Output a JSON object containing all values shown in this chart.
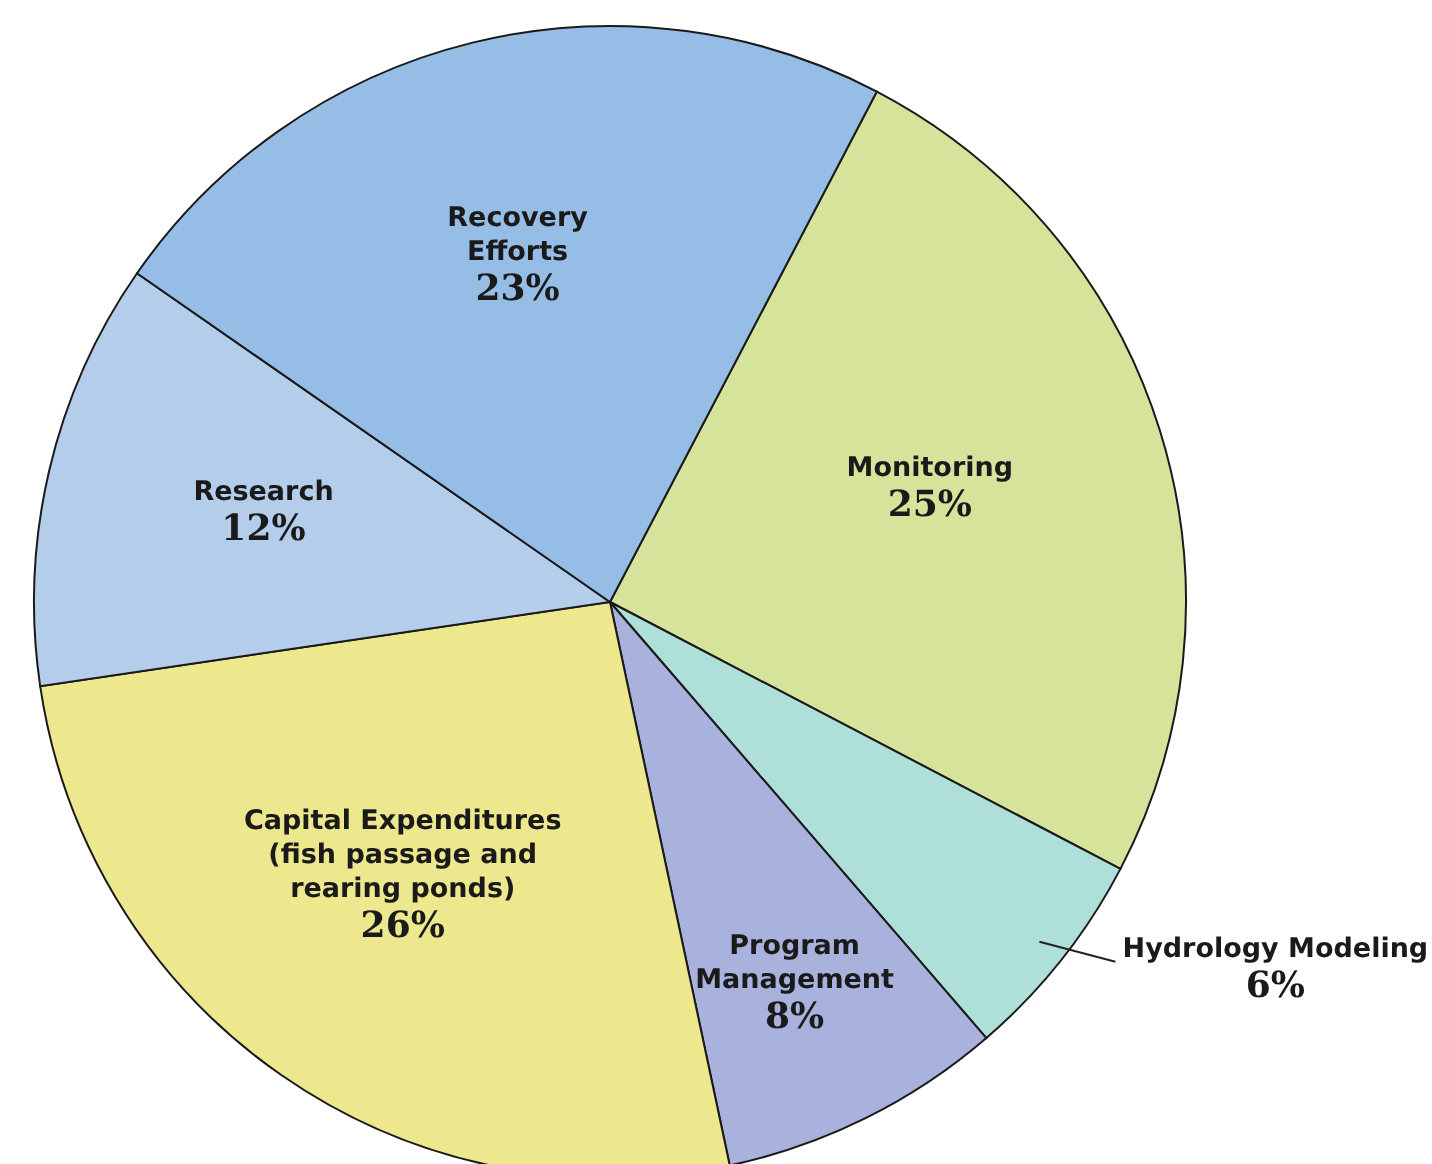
{
  "chart_data": {
    "type": "pie",
    "categories": [
      "Monitoring",
      "Hydrology Modeling",
      "Program Management",
      "Capital Expenditures (fish passage and rearing ponds)",
      "Research",
      "Recovery Efforts"
    ],
    "values": [
      25,
      6,
      8,
      26,
      12,
      23
    ],
    "value_labels": [
      "25%",
      "6%",
      "8%",
      "26%",
      "12%",
      "23%"
    ],
    "colors": [
      "#d5e39b",
      "#aedfd8",
      "#a9b2dd",
      "#ede78e",
      "#b3cdea",
      "#96bde6"
    ]
  }
}
